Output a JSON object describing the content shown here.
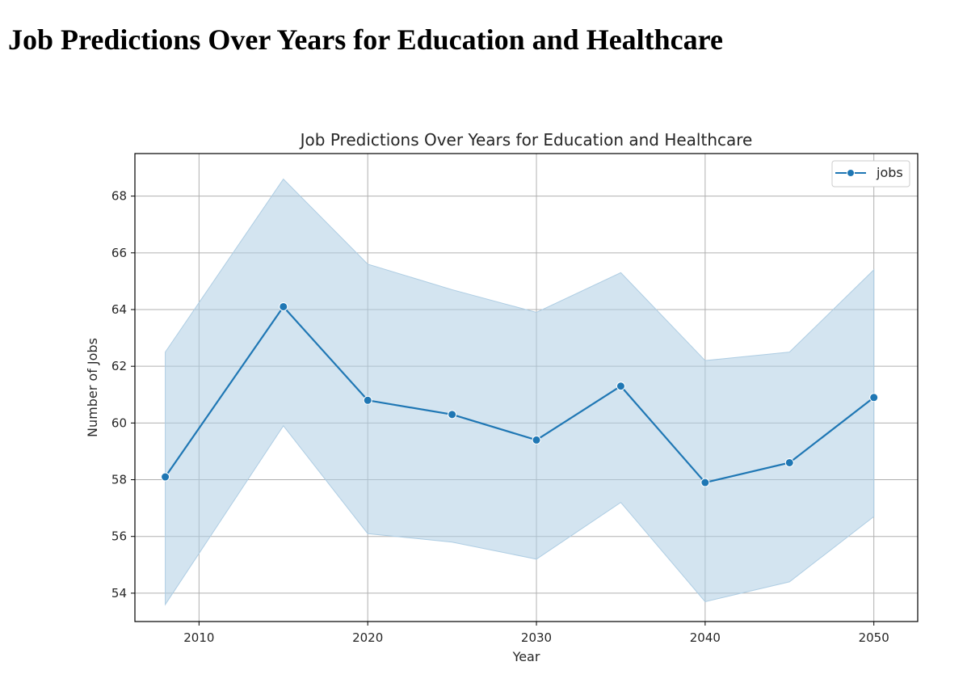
{
  "page": {
    "heading": "Job Predictions Over Years for Education and Healthcare"
  },
  "chart_data": {
    "type": "line",
    "title": "Job Predictions Over Years for Education and Healthcare",
    "xlabel": "Year",
    "ylabel": "Number of Jobs",
    "xlim": [
      2006.2,
      2052.6
    ],
    "ylim": [
      53.0,
      69.5
    ],
    "xticks": [
      2010,
      2020,
      2030,
      2040,
      2050
    ],
    "yticks": [
      54,
      56,
      58,
      60,
      62,
      64,
      66,
      68
    ],
    "grid": true,
    "legend": {
      "position": "top-right"
    },
    "series": [
      {
        "name": "jobs",
        "color": "#1f77b4",
        "marker": "circle",
        "x": [
          2008,
          2015,
          2020,
          2025,
          2030,
          2035,
          2040,
          2045,
          2050
        ],
        "values": [
          58.1,
          64.1,
          60.8,
          60.3,
          59.4,
          61.3,
          57.9,
          58.6,
          60.9
        ],
        "ci_lower": [
          53.6,
          59.9,
          56.1,
          55.8,
          55.2,
          57.2,
          53.7,
          54.4,
          56.7
        ],
        "ci_upper": [
          62.5,
          68.6,
          65.6,
          64.7,
          63.9,
          65.3,
          62.2,
          62.5,
          65.4
        ],
        "band_color": "#aecde3"
      }
    ]
  }
}
